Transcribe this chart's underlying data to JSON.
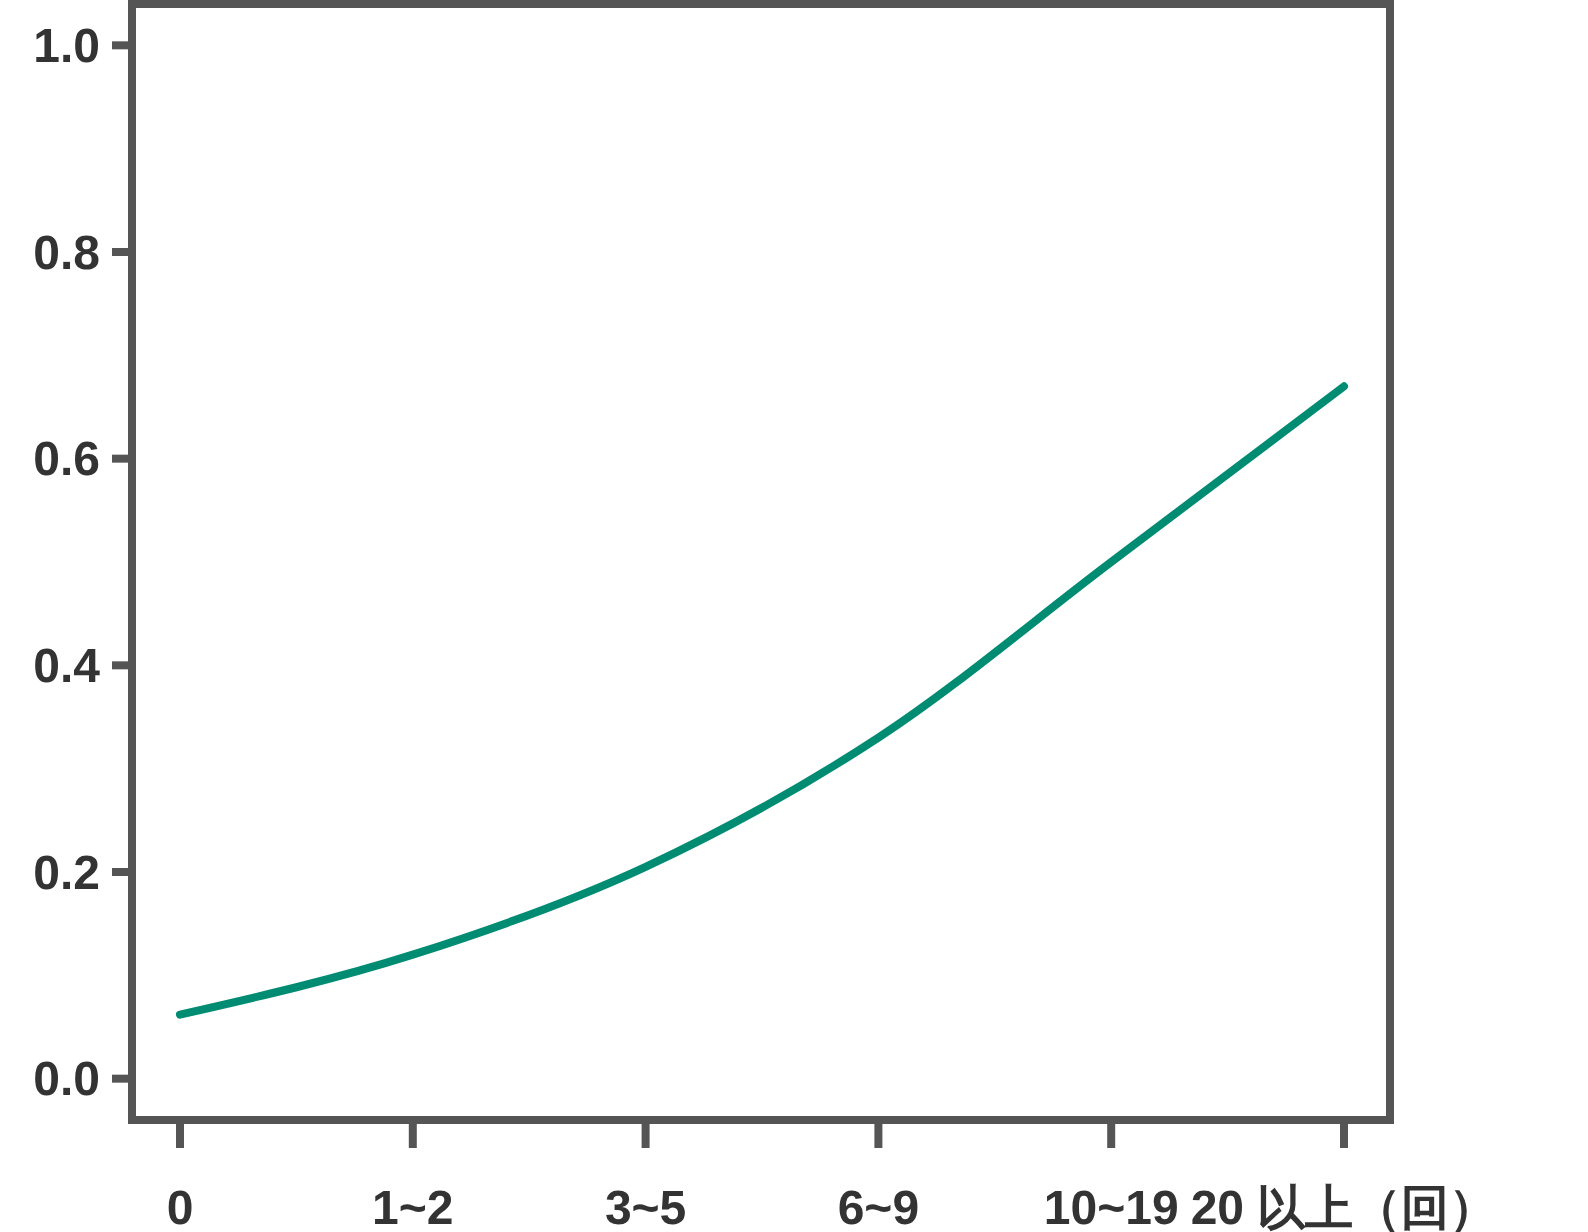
{
  "chart_data": {
    "type": "line",
    "categories": [
      "0",
      "1~2",
      "3~5",
      "6~9",
      "10~19",
      "20 以上（回）"
    ],
    "series": [
      {
        "color": "#008c72",
        "values": [
          0.062,
          0.12,
          0.205,
          0.33,
          0.5,
          0.67
        ]
      }
    ],
    "ylim": [
      -0.04,
      1.04
    ],
    "yticks": [
      {
        "value": 0,
        "label": "0.0"
      },
      {
        "value": 0.2,
        "label": "0.2"
      },
      {
        "value": 0.4,
        "label": "0.4"
      },
      {
        "value": 0.6,
        "label": "0.6"
      },
      {
        "value": 0.8,
        "label": "0.8"
      },
      {
        "value": 1,
        "label": "1.0"
      }
    ],
    "grid": false,
    "marker": "none",
    "line_style": "solid"
  }
}
